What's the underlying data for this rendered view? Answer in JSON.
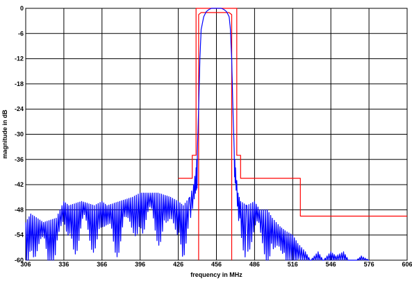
{
  "chart_data": {
    "type": "line",
    "title": "",
    "xlabel": "frequency in MHz",
    "ylabel": "magnitude in dB",
    "xlim": [
      306,
      606
    ],
    "ylim": [
      -60,
      0
    ],
    "xticks": [
      306,
      336,
      366,
      396,
      426,
      456,
      486,
      516,
      546,
      576,
      606
    ],
    "yticks": [
      0,
      -6,
      -12,
      -18,
      -24,
      -30,
      -36,
      -42,
      -48,
      -54,
      -60
    ],
    "grid": true,
    "colors": {
      "mask": "#ff0000",
      "response": "#0000ff",
      "grid": "#000000"
    },
    "series": [
      {
        "style": "mask-upper",
        "color": "#ff0000",
        "x": [
          426,
          437,
          437,
          440,
          440,
          472,
          472,
          475,
          475,
          522,
          522,
          606
        ],
        "y": [
          -40.5,
          -40.5,
          -35,
          -35,
          0,
          0,
          -35,
          -35,
          -40.5,
          -40.5,
          -49.5,
          -49.5
        ]
      },
      {
        "style": "mask-lower",
        "color": "#ff0000",
        "x": [
          442,
          442,
          444,
          466,
          468,
          468
        ],
        "y": [
          -60,
          -1.5,
          -1,
          -1,
          -1.5,
          -60
        ]
      },
      {
        "style": "filter-response-envelope",
        "color": "#0000ff",
        "x": [
          306,
          310,
          320,
          330,
          336,
          340,
          350,
          360,
          366,
          370,
          380,
          390,
          396,
          400,
          410,
          420,
          426,
          430,
          435,
          438,
          440,
          441,
          442,
          443,
          444,
          446,
          448,
          450,
          452,
          454,
          456,
          458,
          460,
          462,
          464,
          466,
          467,
          468,
          469,
          470,
          471,
          473,
          475,
          480,
          486,
          490,
          496,
          500,
          506,
          510,
          516,
          520,
          526,
          530,
          536,
          540,
          546,
          550,
          556,
          560,
          566,
          570,
          576
        ],
        "y": [
          -51,
          -49,
          -51,
          -50,
          -46,
          -47,
          -46,
          -47,
          -46,
          -47,
          -46,
          -45,
          -44,
          -44,
          -44,
          -45,
          -46,
          -47,
          -45,
          -42,
          -38,
          -34,
          -24,
          -12,
          -5,
          -2,
          -0.8,
          -0.3,
          0,
          0,
          0,
          0,
          0,
          -0.3,
          -0.8,
          -2,
          -5,
          -12,
          -24,
          -34,
          -38,
          -44,
          -46,
          -47,
          -46,
          -48,
          -48,
          -50,
          -52,
          -53,
          -54,
          -56,
          -58,
          -60,
          -58,
          -60,
          -58,
          -59,
          -58,
          -60,
          -60,
          -59,
          -60
        ]
      }
    ]
  }
}
